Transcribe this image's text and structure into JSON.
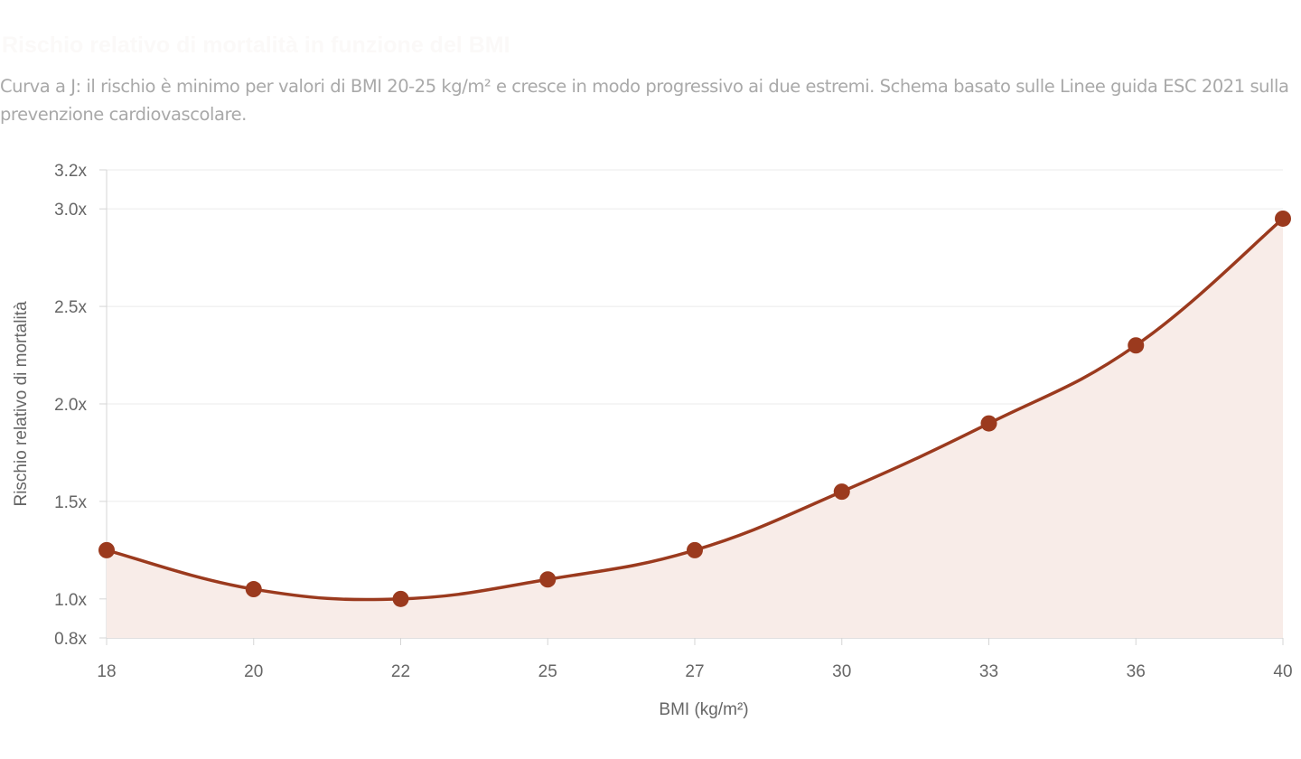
{
  "header": {
    "title": "Rischio relativo di mortalità in funzione del BMI",
    "subtitle": "Curva a J: il rischio è minimo per valori di BMI 20-25 kg/m² e cresce in modo progressivo ai due estremi. Schema basato sulle Linee guida ESC 2021 sulla prevenzione cardiovascolare."
  },
  "colors": {
    "line": "#9b3a1e",
    "fill": "#f8ece8",
    "grid": "#ebebeb",
    "axis": "#d5d5d5",
    "text": "#666666"
  },
  "chart_data": {
    "type": "line",
    "xlabel": "BMI (kg/m²)",
    "ylabel": "Rischio relativo di mortalità",
    "categories": [
      "18",
      "20",
      "22",
      "25",
      "27",
      "30",
      "33",
      "36",
      "40"
    ],
    "series": [
      {
        "values": [
          1.25,
          1.05,
          1.0,
          1.1,
          1.25,
          1.55,
          1.9,
          2.3,
          2.95
        ]
      }
    ],
    "ylim": [
      0.8,
      3.2
    ],
    "yticks": [
      "0.8x",
      "1.0x",
      "1.5x",
      "2.0x",
      "2.5x",
      "3.0x",
      "3.2x"
    ],
    "ytick_values": [
      0.8,
      1.0,
      1.5,
      2.0,
      2.5,
      3.0,
      3.2
    ],
    "grid": true,
    "area_fill": true,
    "smooth": true
  }
}
